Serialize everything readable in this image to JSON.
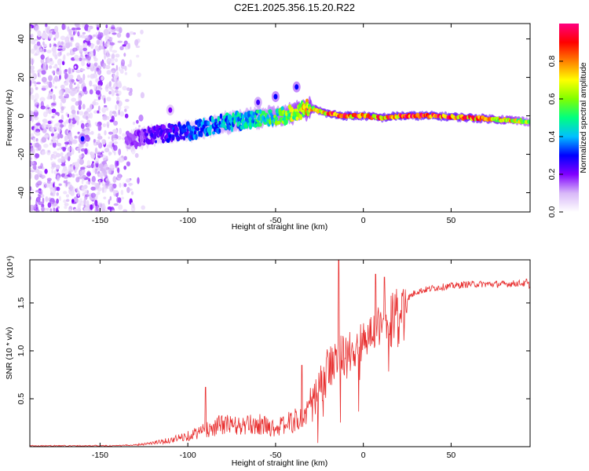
{
  "title": "C2E1.2025.356.15.20.R22",
  "chart_data": [
    {
      "type": "heatmap",
      "name": "spectrogram",
      "xlabel": "Height of straight line (km)",
      "ylabel": "Frequency (Hz)",
      "xlim": [
        -190,
        95
      ],
      "ylim": [
        -50,
        48
      ],
      "xticks": [
        -150,
        -100,
        -50,
        0,
        50
      ],
      "yticks": [
        -40,
        -20,
        0,
        20,
        40
      ],
      "colorbar": {
        "label": "Normalized spectral amplitude",
        "range": [
          0,
          1
        ],
        "ticks": [
          0.0,
          0.2,
          0.4,
          0.6,
          0.8
        ],
        "colormap": [
          "#ffffff",
          "#d8b8f8",
          "#8000ff",
          "#0000ff",
          "#00c0ff",
          "#00ff80",
          "#80ff00",
          "#ffff00",
          "#ff8000",
          "#ff0000",
          "#ff0080"
        ]
      },
      "ridge": {
        "description": "dominant frequency ridge (Hz) vs height (km)",
        "x": [
          -135,
          -120,
          -100,
          -80,
          -60,
          -45,
          -35,
          -30,
          -20,
          -10,
          0,
          10,
          20,
          40,
          60,
          80,
          95
        ],
        "y": [
          -13,
          -10,
          -8,
          -4,
          -1,
          0,
          3,
          4,
          1,
          0,
          0,
          -1,
          0,
          0,
          -1,
          -2,
          -3
        ],
        "amplitude": [
          0.15,
          0.25,
          0.35,
          0.45,
          0.5,
          0.6,
          0.75,
          0.8,
          0.9,
          0.95,
          0.9,
          0.9,
          0.95,
          0.95,
          0.9,
          0.8,
          0.6
        ]
      },
      "blobs": [
        {
          "x": -38,
          "y": 15,
          "amp": 0.3
        },
        {
          "x": -50,
          "y": 10,
          "amp": 0.3
        },
        {
          "x": -60,
          "y": 7,
          "amp": 0.25
        },
        {
          "x": -110,
          "y": 3,
          "amp": 0.2
        },
        {
          "x": -160,
          "y": -12,
          "amp": 0.3
        }
      ],
      "noise_region": {
        "x": [
          -190,
          -130
        ],
        "y": [
          -50,
          48
        ],
        "amplitude": [
          0.05,
          0.2
        ]
      }
    },
    {
      "type": "line",
      "name": "snr",
      "xlabel": "Height of straight line (km)",
      "ylabel": "SNR (10 * v/v)",
      "yscale_label": "(x10⁴)",
      "xlim": [
        -190,
        95
      ],
      "ylim": [
        0,
        1.95
      ],
      "xticks": [
        -150,
        -100,
        -50,
        0,
        50
      ],
      "yticks": [
        0.5,
        1.0,
        1.5
      ],
      "ytick_labels": [
        "0.5",
        "1.0",
        "1.5"
      ],
      "color": "#e02020",
      "envelope": {
        "x": [
          -190,
          -140,
          -130,
          -120,
          -110,
          -100,
          -90,
          -80,
          -70,
          -60,
          -50,
          -40,
          -35,
          -30,
          -25,
          -20,
          -15,
          -10,
          -5,
          0,
          5,
          10,
          15,
          20,
          25,
          30,
          40,
          50,
          60,
          70,
          80,
          90,
          95
        ],
        "y": [
          0.01,
          0.01,
          0.02,
          0.04,
          0.07,
          0.12,
          0.18,
          0.25,
          0.22,
          0.25,
          0.2,
          0.28,
          0.3,
          0.45,
          0.62,
          0.85,
          0.95,
          1.0,
          1.05,
          1.15,
          1.2,
          1.32,
          1.4,
          1.5,
          1.55,
          1.62,
          1.66,
          1.68,
          1.7,
          1.7,
          1.7,
          1.71,
          1.69
        ]
      },
      "peaks": [
        {
          "x": -14,
          "y": 1.95
        },
        {
          "x": 7,
          "y": 1.8
        },
        {
          "x": 12,
          "y": 1.77
        },
        {
          "x": -90,
          "y": 0.62
        },
        {
          "x": -35,
          "y": 0.85
        },
        {
          "x": 93,
          "y": 1.75
        }
      ]
    }
  ]
}
